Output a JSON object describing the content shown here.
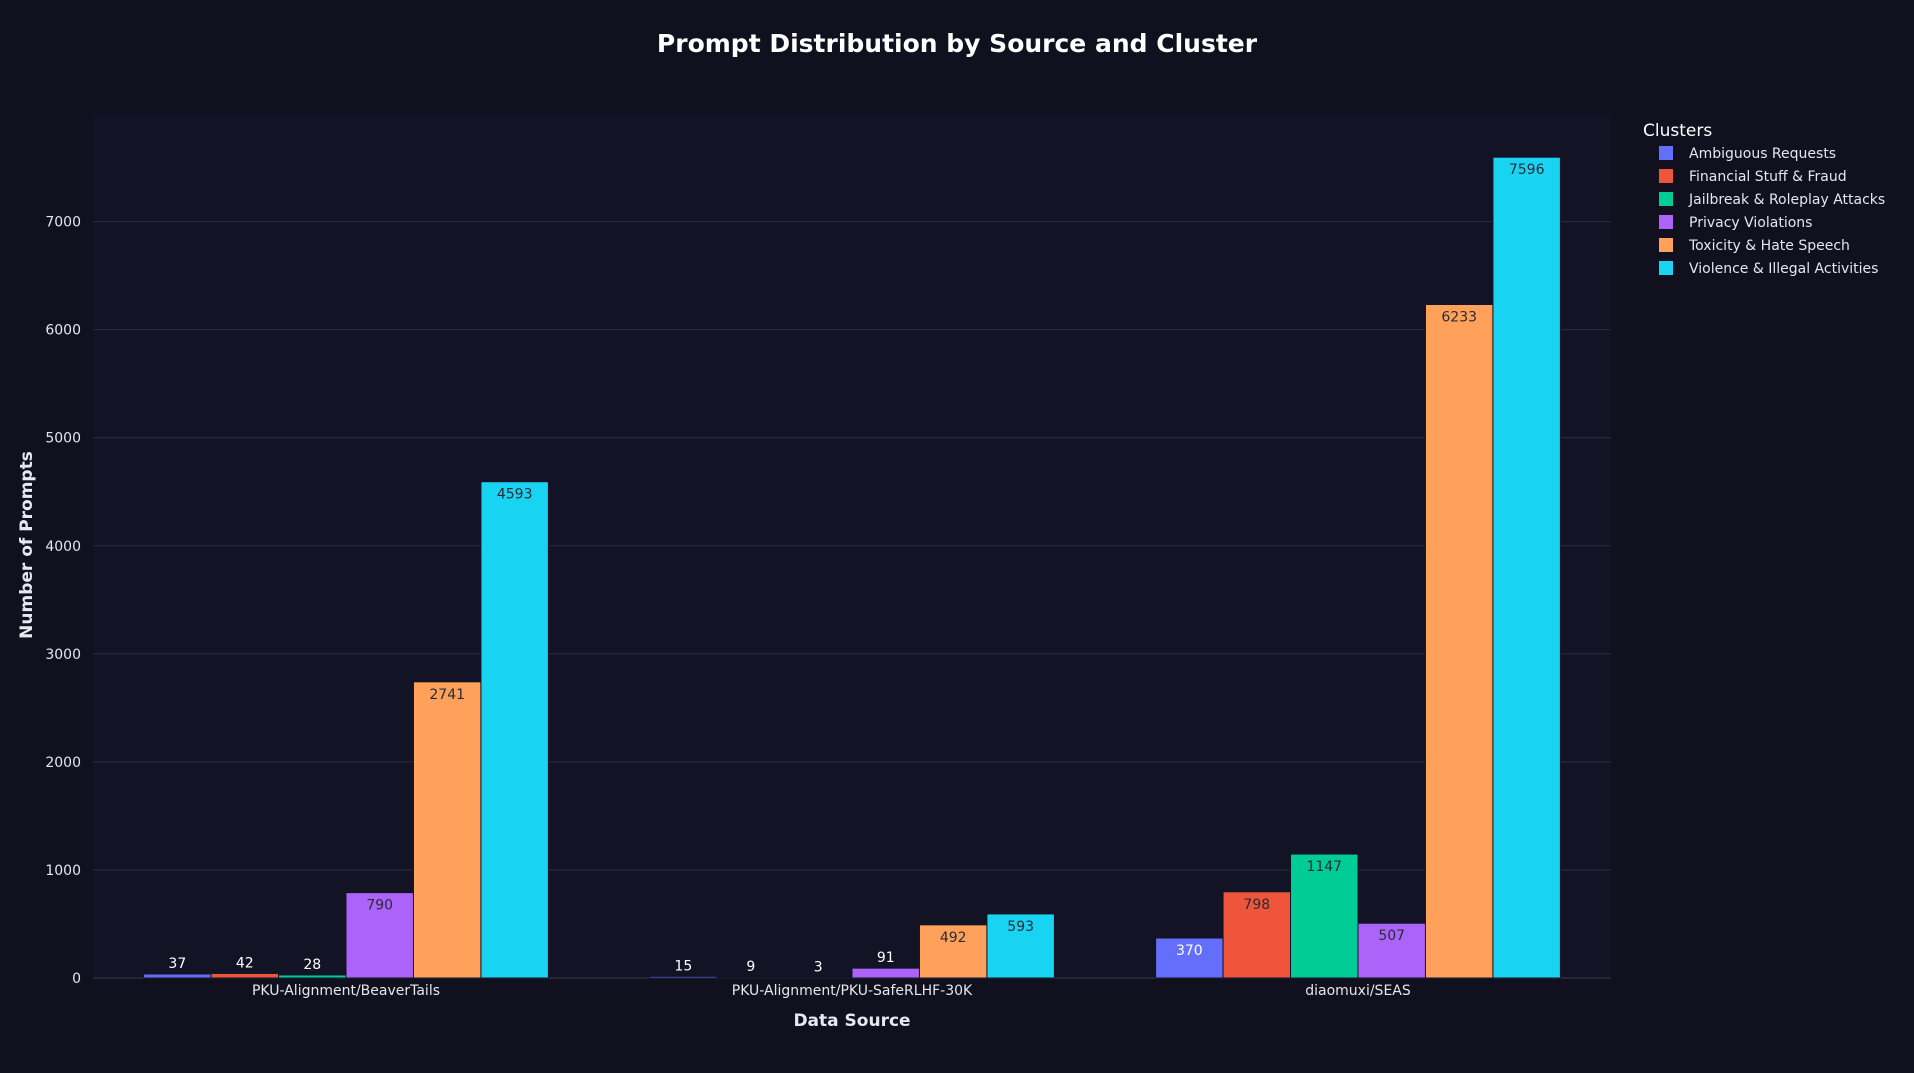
{
  "chart_data": {
    "type": "bar",
    "title": "Prompt Distribution by Source and Cluster",
    "xlabel": "Data Source",
    "ylabel": "Number of Prompts",
    "legend_title": "Clusters",
    "legend_position": "right",
    "grid": true,
    "ylim": [
      0,
      7996
    ],
    "yticks": [
      0,
      1000,
      2000,
      3000,
      4000,
      5000,
      6000,
      7000
    ],
    "categories": [
      "PKU-Alignment/BeaverTails",
      "PKU-Alignment/PKU-SafeRLHF-30K",
      "diaomuxi/SEAS"
    ],
    "series": [
      {
        "name": "Ambiguous Requests",
        "color": "#636efa",
        "values": [
          37,
          15,
          370
        ]
      },
      {
        "name": "Financial Stuff & Fraud",
        "color": "#ef553b",
        "values": [
          42,
          9,
          798
        ]
      },
      {
        "name": "Jailbreak & Roleplay Attacks",
        "color": "#00cc96",
        "values": [
          28,
          3,
          1147
        ]
      },
      {
        "name": "Privacy Violations",
        "color": "#ab63fa",
        "values": [
          790,
          91,
          507
        ]
      },
      {
        "name": "Toxicity & Hate Speech",
        "color": "#ffa15a",
        "values": [
          2741,
          492,
          6233
        ]
      },
      {
        "name": "Violence & Illegal Activities",
        "color": "#19d3f3",
        "values": [
          4593,
          593,
          7596
        ]
      }
    ],
    "colors": {
      "page_background": "#10101f",
      "plot_background": "#121324",
      "gridline": "#2c2e42"
    }
  }
}
